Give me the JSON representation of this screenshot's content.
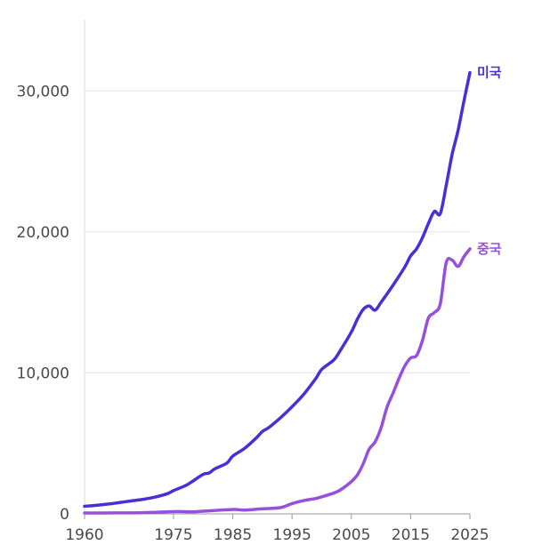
{
  "chart_data": {
    "type": "line",
    "xlim": [
      1960,
      2025
    ],
    "ylim": [
      0,
      35000
    ],
    "x_ticks": [
      1960,
      1975,
      1985,
      1995,
      2005,
      2015,
      2025
    ],
    "x_tick_labels": [
      "1960",
      "1975",
      "1985",
      "1995",
      "2005",
      "2015",
      "2025"
    ],
    "y_ticks": [
      0,
      10000,
      20000,
      30000
    ],
    "y_tick_labels": [
      "0",
      "10,000",
      "20,000",
      "30,000"
    ],
    "grid": "horizontal",
    "series": [
      {
        "name": "미국",
        "color": "#4a2fd6",
        "points": [
          [
            1960,
            540
          ],
          [
            1962,
            610
          ],
          [
            1964,
            700
          ],
          [
            1966,
            810
          ],
          [
            1968,
            930
          ],
          [
            1970,
            1040
          ],
          [
            1972,
            1200
          ],
          [
            1974,
            1440
          ],
          [
            1975,
            1650
          ],
          [
            1977,
            2000
          ],
          [
            1978,
            2250
          ],
          [
            1980,
            2800
          ],
          [
            1981,
            2900
          ],
          [
            1982,
            3200
          ],
          [
            1984,
            3600
          ],
          [
            1985,
            4100
          ],
          [
            1987,
            4650
          ],
          [
            1989,
            5400
          ],
          [
            1990,
            5850
          ],
          [
            1991,
            6100
          ],
          [
            1993,
            6800
          ],
          [
            1995,
            7600
          ],
          [
            1997,
            8500
          ],
          [
            1999,
            9600
          ],
          [
            2000,
            10250
          ],
          [
            2002,
            10900
          ],
          [
            2003,
            11500
          ],
          [
            2005,
            12900
          ],
          [
            2006,
            13800
          ],
          [
            2007,
            14500
          ],
          [
            2008,
            14750
          ],
          [
            2009,
            14450
          ],
          [
            2010,
            15000
          ],
          [
            2012,
            16200
          ],
          [
            2014,
            17500
          ],
          [
            2015,
            18300
          ],
          [
            2016,
            18800
          ],
          [
            2017,
            19600
          ],
          [
            2018,
            20600
          ],
          [
            2019,
            21450
          ],
          [
            2020,
            21300
          ],
          [
            2021,
            23300
          ],
          [
            2022,
            25500
          ],
          [
            2023,
            27200
          ],
          [
            2024,
            29300
          ],
          [
            2025,
            31300
          ]
        ]
      },
      {
        "name": "중국",
        "color": "#9650dc",
        "points": [
          [
            1960,
            60
          ],
          [
            1965,
            70
          ],
          [
            1970,
            90
          ],
          [
            1975,
            160
          ],
          [
            1978,
            150
          ],
          [
            1980,
            190
          ],
          [
            1985,
            310
          ],
          [
            1987,
            270
          ],
          [
            1990,
            360
          ],
          [
            1993,
            440
          ],
          [
            1995,
            730
          ],
          [
            1997,
            950
          ],
          [
            1999,
            1090
          ],
          [
            2000,
            1210
          ],
          [
            2002,
            1470
          ],
          [
            2003,
            1660
          ],
          [
            2004,
            1950
          ],
          [
            2005,
            2290
          ],
          [
            2006,
            2750
          ],
          [
            2007,
            3550
          ],
          [
            2008,
            4590
          ],
          [
            2009,
            5100
          ],
          [
            2010,
            6090
          ],
          [
            2011,
            7550
          ],
          [
            2012,
            8530
          ],
          [
            2013,
            9570
          ],
          [
            2014,
            10480
          ],
          [
            2015,
            11060
          ],
          [
            2016,
            11230
          ],
          [
            2017,
            12310
          ],
          [
            2018,
            13890
          ],
          [
            2019,
            14280
          ],
          [
            2020,
            14900
          ],
          [
            2021,
            17820
          ],
          [
            2022,
            18000
          ],
          [
            2023,
            17550
          ],
          [
            2024,
            18250
          ],
          [
            2025,
            18800
          ]
        ]
      }
    ]
  }
}
